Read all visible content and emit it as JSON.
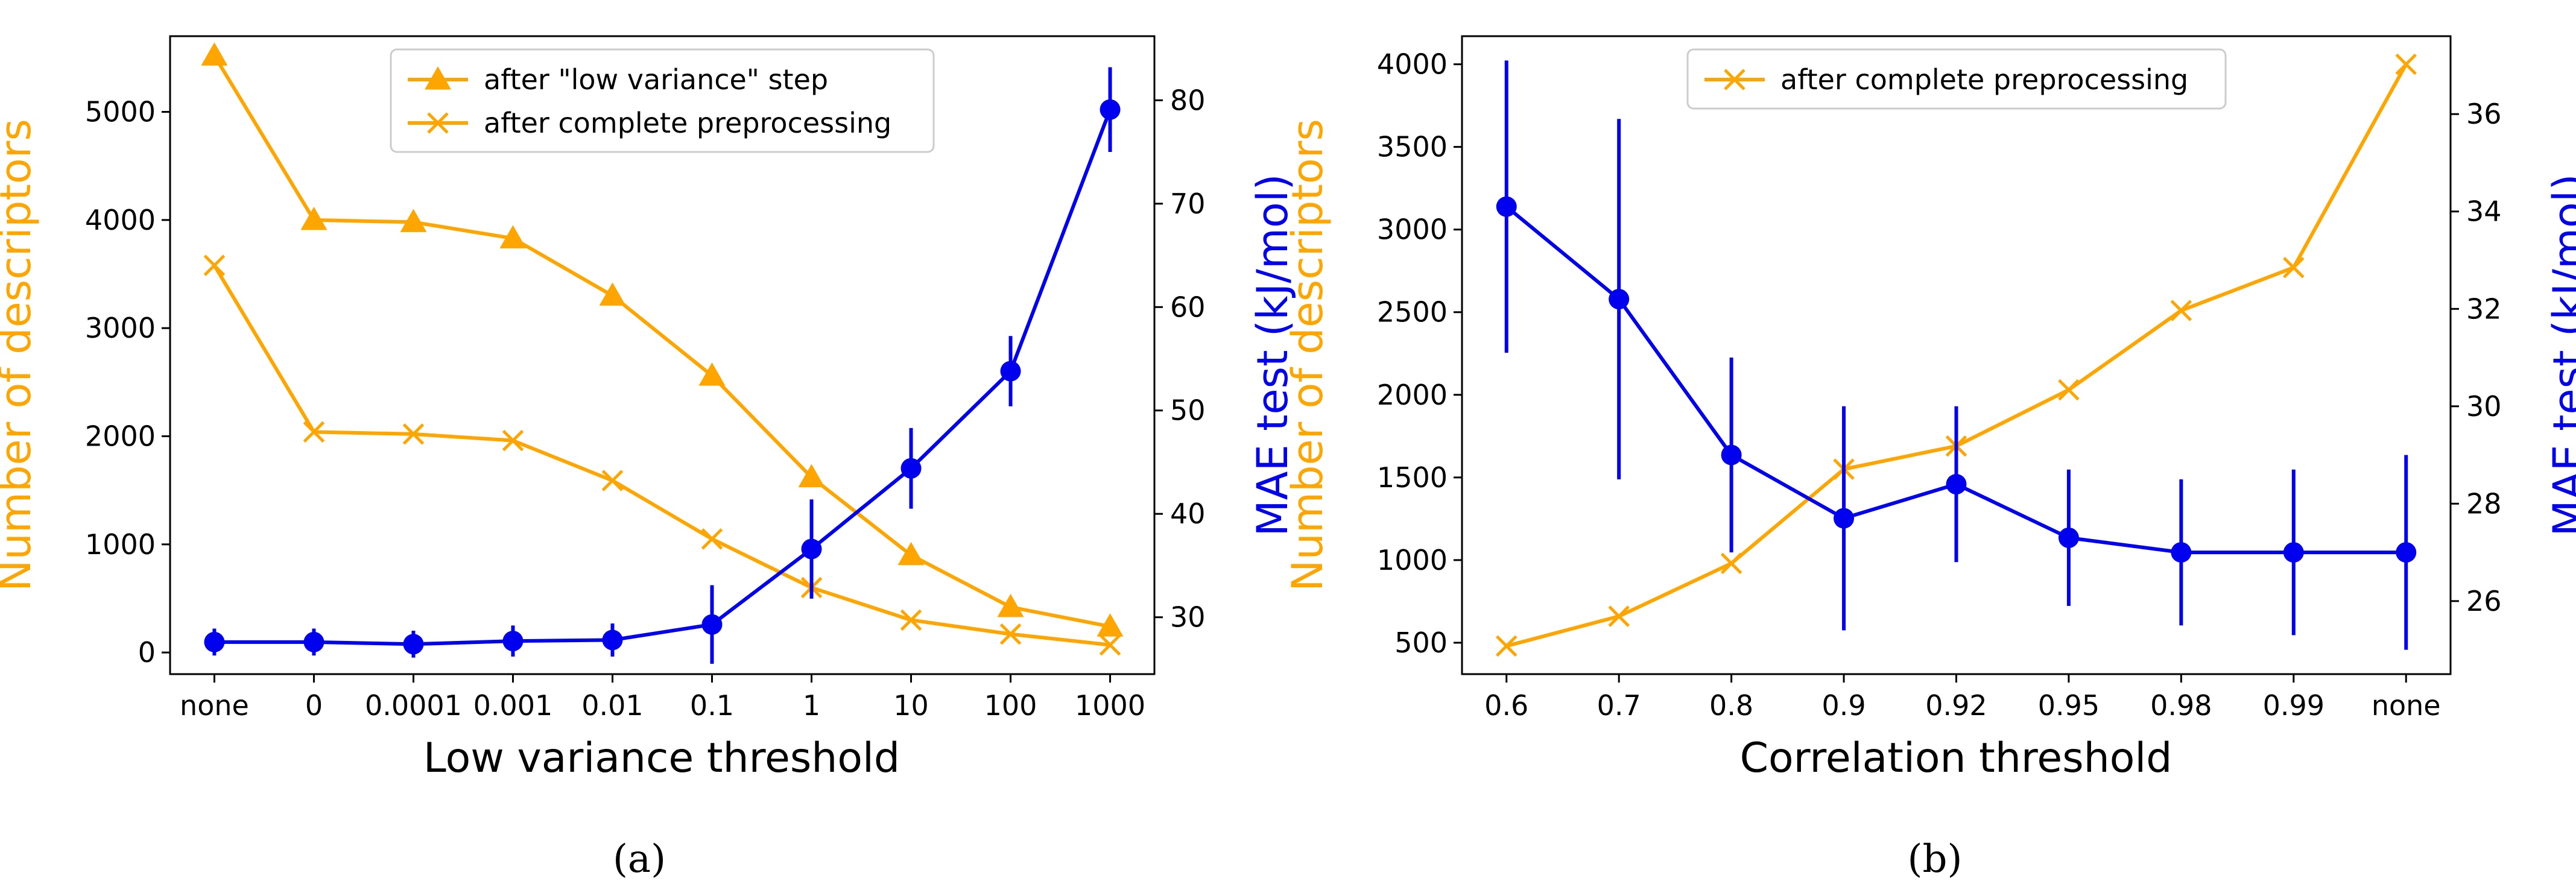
{
  "chart_data": [
    {
      "type": "line",
      "panel": "a",
      "caption": "(a)",
      "xlabel": "Low variance threshold",
      "ylabel": "Number of descriptors",
      "ylabel_right": "MAE test (kJ/mol)",
      "categories": [
        "none",
        "0",
        "0.0001",
        "0.001",
        "0.01",
        "0.1",
        "1",
        "10",
        "100",
        "1000"
      ],
      "ylim": [
        -200,
        5700
      ],
      "yticks": [
        0,
        1000,
        2000,
        3000,
        4000,
        5000
      ],
      "ylim_right": [
        24.5,
        86.2
      ],
      "yticks_right": [
        30,
        40,
        50,
        60,
        70,
        80
      ],
      "series": [
        {
          "name": "after \"low variance\" step",
          "axis": "left",
          "color": "#FFA500",
          "marker": "triangle",
          "values": [
            5520,
            4000,
            3980,
            3830,
            3300,
            2560,
            1620,
            900,
            420,
            240
          ]
        },
        {
          "name": "after complete preprocessing",
          "axis": "left",
          "color": "#FFA500",
          "marker": "x",
          "values": [
            3580,
            2040,
            2020,
            1960,
            1590,
            1050,
            600,
            300,
            170,
            70
          ]
        },
        {
          "name": "MAE test",
          "axis": "right",
          "color": "#0000EE",
          "marker": "circle",
          "values": [
            27.6,
            27.6,
            27.4,
            27.7,
            27.8,
            29.3,
            36.6,
            44.4,
            53.8,
            79.1
          ],
          "errors": [
            1.3,
            1.3,
            1.3,
            1.5,
            1.6,
            3.8,
            4.8,
            3.9,
            3.4,
            4.1
          ]
        }
      ],
      "legend": [
        "after \"low variance\" step",
        "after complete preprocessing"
      ],
      "legend_loc": "top-center"
    },
    {
      "type": "line",
      "panel": "b",
      "caption": "(b)",
      "xlabel": "Correlation threshold",
      "ylabel": "Number of descriptors",
      "ylabel_right": "MAE test (kJ/mol)",
      "categories": [
        "0.6",
        "0.7",
        "0.8",
        "0.9",
        "0.92",
        "0.95",
        "0.98",
        "0.99",
        "none"
      ],
      "ylim": [
        310,
        4170
      ],
      "yticks": [
        500,
        1000,
        1500,
        2000,
        2500,
        3000,
        3500,
        4000
      ],
      "ylim_right": [
        24.5,
        37.6
      ],
      "yticks_right": [
        26,
        28,
        30,
        32,
        34,
        36
      ],
      "series": [
        {
          "name": "after complete preprocessing",
          "axis": "left",
          "color": "#FFA500",
          "marker": "x",
          "values": [
            480,
            660,
            980,
            1550,
            1690,
            2030,
            2510,
            2770,
            4000
          ]
        },
        {
          "name": "MAE test",
          "axis": "right",
          "color": "#0000EE",
          "marker": "circle",
          "values": [
            34.1,
            32.2,
            29.0,
            27.7,
            28.4,
            27.3,
            27.0,
            27.0,
            27.0
          ],
          "errors": [
            3.0,
            3.7,
            2.0,
            2.3,
            1.6,
            1.4,
            1.5,
            1.7,
            2.0
          ]
        }
      ],
      "legend": [
        "after complete preprocessing"
      ],
      "legend_loc": "top-center"
    }
  ]
}
